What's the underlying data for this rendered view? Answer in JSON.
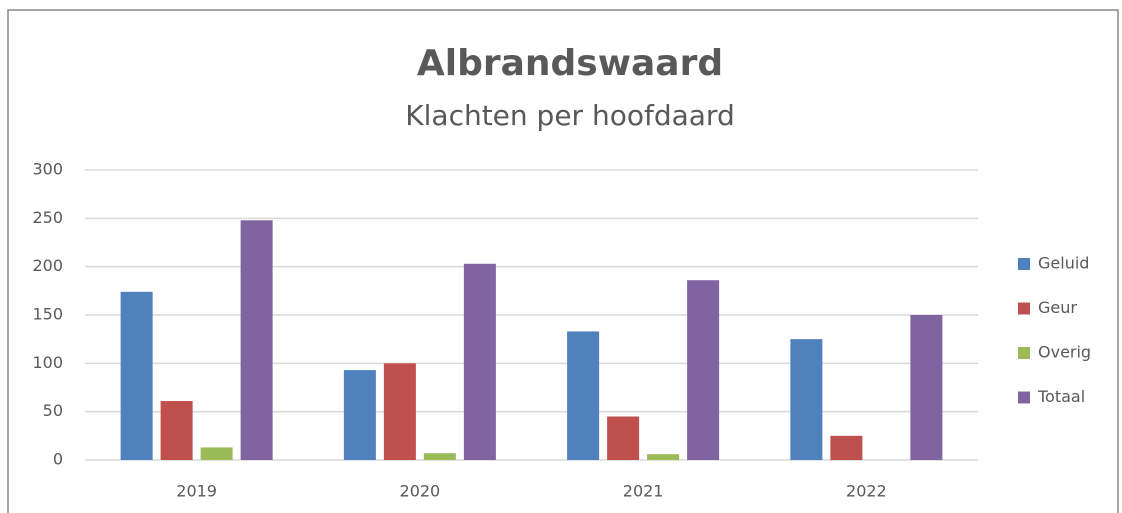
{
  "chart_data": {
    "type": "bar",
    "title": "Albrandswaard",
    "subtitle": "Klachten per hoofdaard",
    "categories": [
      "2019",
      "2020",
      "2021",
      "2022"
    ],
    "series": [
      {
        "name": "Geluid",
        "color": "#4f81bd",
        "values": [
          174,
          93,
          133,
          125
        ]
      },
      {
        "name": "Geur",
        "color": "#c0504d",
        "values": [
          61,
          100,
          45,
          25
        ]
      },
      {
        "name": "Overig",
        "color": "#9bbb59",
        "values": [
          13,
          7,
          6,
          0
        ]
      },
      {
        "name": "Totaal",
        "color": "#8064a2",
        "values": [
          248,
          203,
          186,
          150
        ]
      }
    ],
    "ylim": [
      0,
      300
    ],
    "yticks": [
      0,
      50,
      100,
      150,
      200,
      250,
      300
    ],
    "grid": true,
    "legend": "right"
  }
}
